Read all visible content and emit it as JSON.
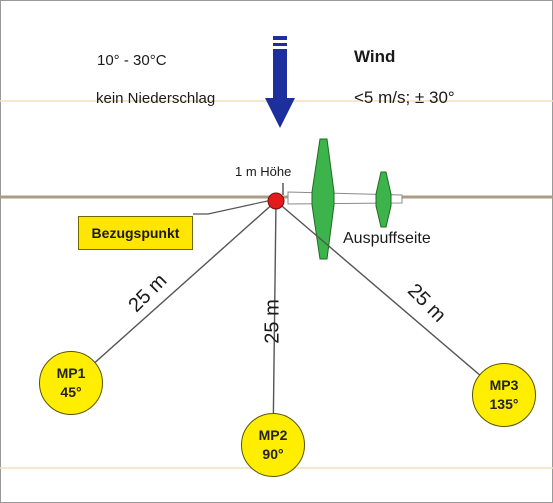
{
  "conditions": {
    "temperature": "10° - 30°C",
    "precipitation": "kein Niederschlag"
  },
  "wind": {
    "title": "Wind",
    "value": "<5 m/s; ± 30°"
  },
  "height_label": "1 m Höhe",
  "reference_point": "Bezugspunkt",
  "exhaust_side": "Auspuffseite",
  "distances": [
    "25 m",
    "25 m",
    "25 m"
  ],
  "measurement_points": [
    {
      "id": "MP1",
      "angle": "45°"
    },
    {
      "id": "MP2",
      "angle": "90°"
    },
    {
      "id": "MP3",
      "angle": "135°"
    }
  ],
  "colors": {
    "wind_arrow": "#1c2f9c",
    "aircraft": "#3cb44b",
    "reference_dot": "#e41b1b",
    "label_fill": "#ffe600",
    "gridline": "#f2e1bf"
  }
}
